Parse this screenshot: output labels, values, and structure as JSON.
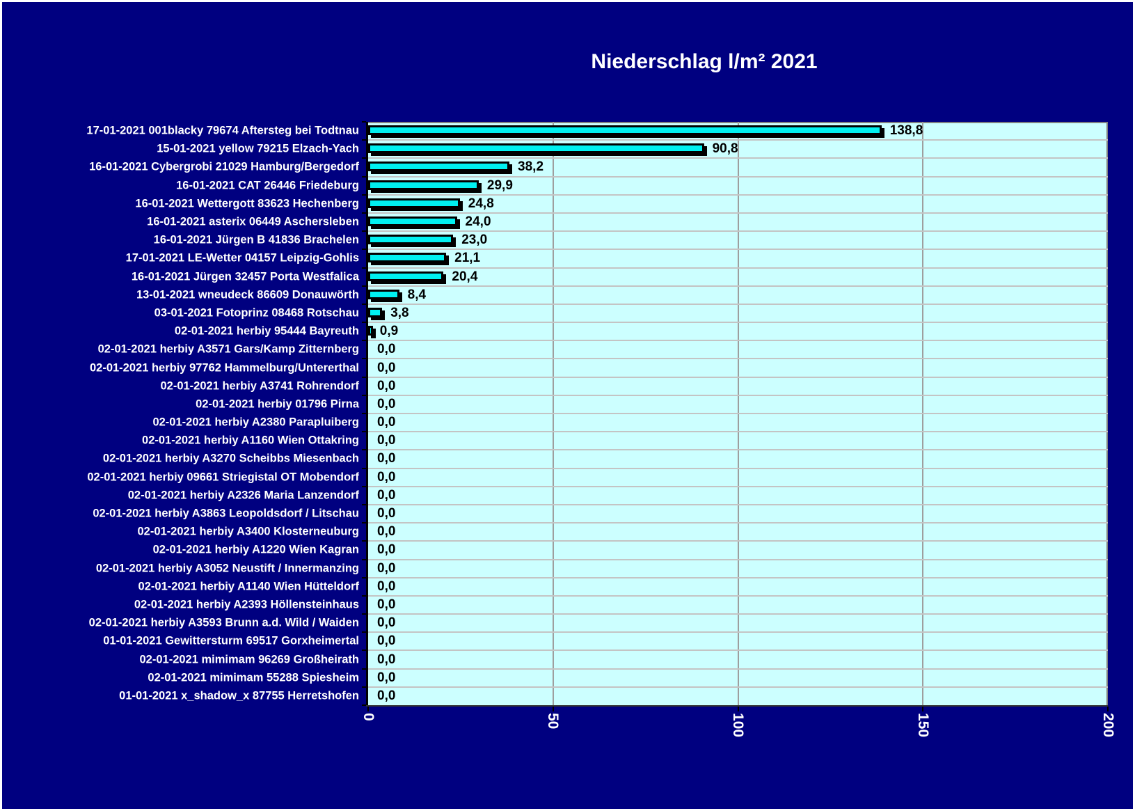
{
  "chart_data": {
    "type": "bar",
    "orientation": "horizontal",
    "title": "Niederschlag l/m² 2021",
    "categories": [
      "17-01-2021 001blacky 79674 Aftersteg bei Todtnau",
      "15-01-2021 yellow 79215 Elzach-Yach",
      "16-01-2021 Cybergrobi 21029 Hamburg/Bergedorf",
      "16-01-2021 CAT 26446 Friedeburg",
      "16-01-2021 Wettergott 83623 Hechenberg",
      "16-01-2021 asterix 06449 Aschersleben",
      "16-01-2021 Jürgen B 41836 Brachelen",
      "17-01-2021 LE-Wetter 04157 Leipzig-Gohlis",
      "16-01-2021 Jürgen 32457 Porta Westfalica",
      "13-01-2021 wneudeck 86609 Donauwörth",
      "03-01-2021 Fotoprinz 08468 Rotschau",
      "02-01-2021 herbiy 95444 Bayreuth",
      "02-01-2021 herbiy A3571 Gars/Kamp Zitternberg",
      "02-01-2021 herbiy 97762 Hammelburg/Untererthal",
      "02-01-2021 herbiy A3741 Rohrendorf",
      "02-01-2021 herbiy 01796 Pirna",
      "02-01-2021 herbiy A2380 Parapluiberg",
      "02-01-2021 herbiy A1160 Wien Ottakring",
      "02-01-2021 herbiy A3270 Scheibbs Miesenbach",
      "02-01-2021 herbiy 09661 Striegistal OT Mobendorf",
      "02-01-2021 herbiy A2326 Maria Lanzendorf",
      "02-01-2021 herbiy A3863 Leopoldsdorf / Litschau",
      "02-01-2021 herbiy A3400 Klosterneuburg",
      "02-01-2021 herbiy A1220 Wien Kagran",
      "02-01-2021 herbiy A3052 Neustift / Innermanzing",
      "02-01-2021 herbiy A1140 Wien Hütteldorf",
      "02-01-2021 herbiy A2393 Höllensteinhaus",
      "02-01-2021 herbiy A3593 Brunn a.d. Wild / Waiden",
      "01-01-2021 Gewittersturm 69517 Gorxheimertal",
      "02-01-2021 mimimam 96269 Großheirath",
      "02-01-2021 mimimam 55288 Spiesheim",
      "01-01-2021 x_shadow_x 87755 Herretshofen"
    ],
    "values": [
      138.8,
      90.8,
      38.2,
      29.9,
      24.8,
      24.0,
      23.0,
      21.1,
      20.4,
      8.4,
      3.8,
      0.9,
      0,
      0,
      0,
      0,
      0,
      0,
      0,
      0,
      0,
      0,
      0,
      0,
      0,
      0,
      0,
      0,
      0,
      0,
      0,
      0
    ],
    "value_labels": [
      "138,8",
      "90,8",
      "38,2",
      "29,9",
      "24,8",
      "24,0",
      "23,0",
      "21,1",
      "20,4",
      "8,4",
      "3,8",
      "0,9",
      "0,0",
      "0,0",
      "0,0",
      "0,0",
      "0,0",
      "0,0",
      "0,0",
      "0,0",
      "0,0",
      "0,0",
      "0,0",
      "0,0",
      "0,0",
      "0,0",
      "0,0",
      "0,0",
      "0,0",
      "0,0",
      "0,0",
      "0,0"
    ],
    "xlim": [
      0,
      200
    ],
    "x_ticks": [
      "0",
      "50",
      "100",
      "150",
      "200"
    ],
    "grid": "vertical major gridlines and horizontal category separators",
    "legend_position": "none",
    "colors": {
      "background": "#000080",
      "plot_background": "#CCFFFF",
      "bar_fill": "#00F0F0",
      "bar_border": "#000000",
      "bar_shadow": "#000000",
      "vertical_gridline": "#9E9E9E",
      "row_separator": "#C4C4C4",
      "plot_border": "#808080",
      "axis_line": "#000000",
      "title_text": "#FFFFFF",
      "category_text": "#FFFFFF",
      "value_text": "#000000",
      "axis_tick_text": "#FFFFFF",
      "outer_frame": "#FFFFFF"
    }
  }
}
